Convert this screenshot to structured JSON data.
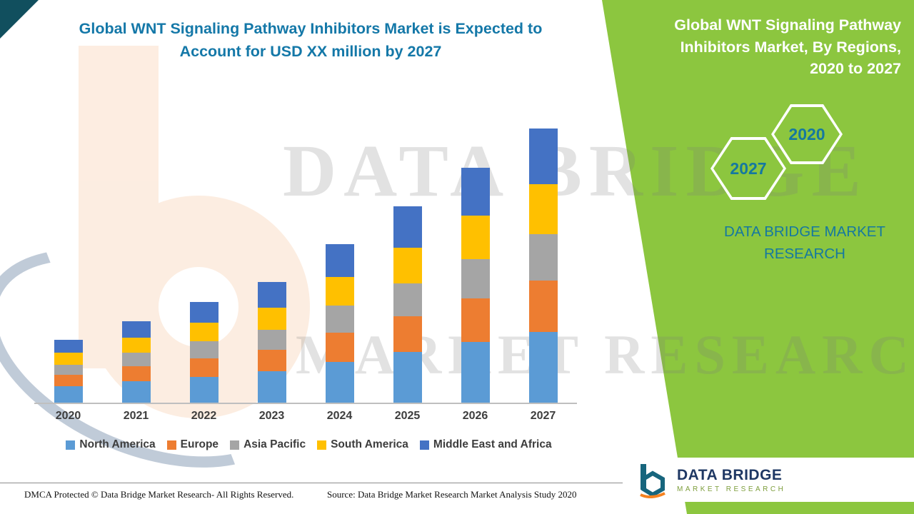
{
  "colors": {
    "panel_green": "#8CC63F",
    "title_teal": "#1478A8",
    "panel_text_teal": "#1578A0",
    "corner_teal": "#114F5E",
    "watermark_peach": "#FBDFC9",
    "logo_navy": "#1F3864",
    "axis_gray": "#BFBFBF"
  },
  "header": {
    "title_line1": "Global WNT Signaling Pathway Inhibitors Market is Expected to",
    "title_line2": "Account for USD XX million by 2027"
  },
  "right_panel": {
    "title": "Global WNT Signaling Pathway Inhibitors Market, By Regions, 2020 to 2027",
    "hexagon_back_year": "2020",
    "hexagon_front_year": "2027",
    "brand_name": "DATA BRIDGE MARKET RESEARCH"
  },
  "watermark": {
    "line1": "DATA BRIDGE",
    "line2": "MARKET RESEARCH",
    "logo_mark": "b"
  },
  "logo": {
    "name": "DATA BRIDGE",
    "tagline": "MARKET RESEARCH"
  },
  "footer": {
    "dmca": "DMCA Protected © Data Bridge Market Research- All Rights Reserved.",
    "source": "Source: Data Bridge Market Research Market Analysis Study 2020"
  },
  "chart_data": {
    "type": "bar",
    "stacked": true,
    "title": "Global WNT Signaling Pathway Inhibitors Market is Expected to Account for USD XX million by 2027",
    "categories": [
      "2020",
      "2021",
      "2022",
      "2023",
      "2024",
      "2025",
      "2026",
      "2027"
    ],
    "series": [
      {
        "name": "North America",
        "color": "#5B9BD5",
        "values": [
          2.4,
          3.1,
          3.8,
          4.6,
          6.0,
          7.4,
          8.9,
          10.4
        ]
      },
      {
        "name": "Europe",
        "color": "#ED7D31",
        "values": [
          1.7,
          2.2,
          2.7,
          3.2,
          4.3,
          5.3,
          6.4,
          7.5
        ]
      },
      {
        "name": "Asia Pacific",
        "color": "#A5A5A5",
        "values": [
          1.5,
          2.0,
          2.5,
          2.9,
          3.9,
          4.8,
          5.8,
          6.8
        ]
      },
      {
        "name": "South America",
        "color": "#FFC000",
        "values": [
          1.7,
          2.2,
          2.7,
          3.2,
          4.2,
          5.2,
          6.3,
          7.3
        ]
      },
      {
        "name": "Middle East and Africa",
        "color": "#4472C4",
        "values": [
          1.9,
          2.4,
          3.1,
          3.8,
          4.8,
          6.1,
          7.1,
          8.2
        ]
      }
    ],
    "xlabel": "",
    "ylabel": "",
    "value_axis_visible": false,
    "grid": false,
    "legend_position": "bottom",
    "note": "No value axis is shown in the figure; series values are estimated from relative stacked bar heights."
  }
}
